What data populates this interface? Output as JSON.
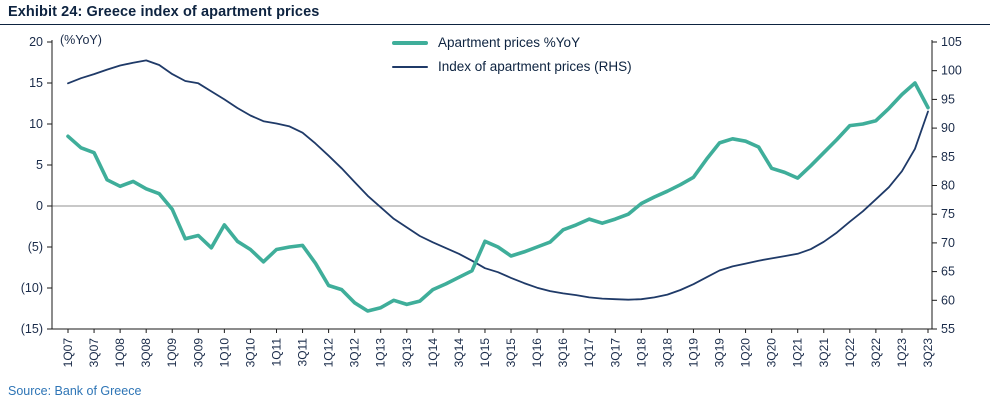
{
  "header": {
    "title": "Exhibit 24: Greece index of apartment prices"
  },
  "legend": {
    "yoy": "Apartment prices %YoY",
    "index": "Index of apartment prices (RHS)"
  },
  "axes": {
    "left_unit": "(%YoY)"
  },
  "footer": {
    "source": "Source: Bank of Greece"
  },
  "colors": {
    "yoy_line": "#3fae9a",
    "index_line": "#1f3a68",
    "zero_line": "#a8a8a8",
    "axis_line": "#1a1a1a",
    "axis_text": "#1a2b49",
    "source_text": "#2e75b6"
  },
  "chart_data": {
    "type": "line",
    "title": "Exhibit 24: Greece index of apartment prices",
    "x": [
      "1Q07",
      "2Q07",
      "3Q07",
      "4Q07",
      "1Q08",
      "2Q08",
      "3Q08",
      "4Q08",
      "1Q09",
      "2Q09",
      "3Q09",
      "4Q09",
      "1Q10",
      "2Q10",
      "3Q10",
      "4Q10",
      "1Q11",
      "2Q11",
      "3Q11",
      "4Q11",
      "1Q12",
      "2Q12",
      "3Q12",
      "4Q12",
      "1Q13",
      "2Q13",
      "3Q13",
      "4Q13",
      "1Q14",
      "2Q14",
      "3Q14",
      "4Q14",
      "1Q15",
      "2Q15",
      "3Q15",
      "4Q15",
      "1Q16",
      "2Q16",
      "3Q16",
      "4Q16",
      "1Q17",
      "2Q17",
      "3Q17",
      "4Q17",
      "1Q18",
      "2Q18",
      "3Q18",
      "4Q18",
      "1Q19",
      "2Q19",
      "3Q19",
      "4Q19",
      "1Q20",
      "2Q20",
      "3Q20",
      "4Q20",
      "1Q21",
      "2Q21",
      "3Q21",
      "4Q21",
      "1Q22",
      "2Q22",
      "3Q22",
      "4Q22",
      "1Q23",
      "2Q23",
      "3Q23"
    ],
    "x_tick_every": 2,
    "series": [
      {
        "name": "Apartment prices %YoY",
        "axis": "left",
        "values": [
          8.5,
          7.1,
          6.5,
          3.2,
          2.4,
          3.0,
          2.1,
          1.5,
          -0.4,
          -4.0,
          -3.6,
          -5.1,
          -2.3,
          -4.3,
          -5.3,
          -6.8,
          -5.3,
          -5.0,
          -4.8,
          -7.0,
          -9.7,
          -10.2,
          -11.8,
          -12.8,
          -12.4,
          -11.5,
          -12.0,
          -11.6,
          -10.2,
          -9.5,
          -8.7,
          -7.9,
          -4.3,
          -5.0,
          -6.1,
          -5.6,
          -5.0,
          -4.4,
          -2.9,
          -2.3,
          -1.6,
          -2.1,
          -1.6,
          -1.0,
          0.3,
          1.1,
          1.8,
          2.6,
          3.5,
          5.7,
          7.7,
          8.2,
          7.9,
          7.2,
          4.6,
          4.1,
          3.4,
          4.9,
          6.5,
          8.1,
          9.8,
          10.0,
          10.4,
          11.9,
          13.6,
          15.0,
          12.0
        ]
      },
      {
        "name": "Index of apartment prices (RHS)",
        "axis": "right",
        "values": [
          97.8,
          98.7,
          99.4,
          100.2,
          100.9,
          101.4,
          101.8,
          101.0,
          99.4,
          98.2,
          97.8,
          96.4,
          95.0,
          93.5,
          92.2,
          91.2,
          90.8,
          90.3,
          89.2,
          87.3,
          85.2,
          83.0,
          80.6,
          78.2,
          76.2,
          74.2,
          72.7,
          71.2,
          70.1,
          69.1,
          68.1,
          66.9,
          65.6,
          64.9,
          63.9,
          63.0,
          62.2,
          61.6,
          61.2,
          60.9,
          60.5,
          60.3,
          60.2,
          60.1,
          60.2,
          60.5,
          61.0,
          61.8,
          62.8,
          64.0,
          65.2,
          65.9,
          66.4,
          66.9,
          67.3,
          67.7,
          68.1,
          68.9,
          70.2,
          71.8,
          73.7,
          75.5,
          77.6,
          79.7,
          82.5,
          86.4,
          92.9
        ]
      }
    ],
    "left_axis": {
      "min": -15,
      "max": 20,
      "step": 5,
      "tick_labels": [
        "20",
        "15",
        "10",
        "5",
        "0",
        "(5)",
        "(10)",
        "(15)"
      ]
    },
    "right_axis": {
      "min": 55,
      "max": 105,
      "step": 5,
      "tick_labels": [
        "105",
        "100",
        "95",
        "90",
        "85",
        "80",
        "75",
        "70",
        "65",
        "60",
        "55"
      ]
    },
    "grid": "zero-line-only",
    "legend_position": "top-center"
  }
}
